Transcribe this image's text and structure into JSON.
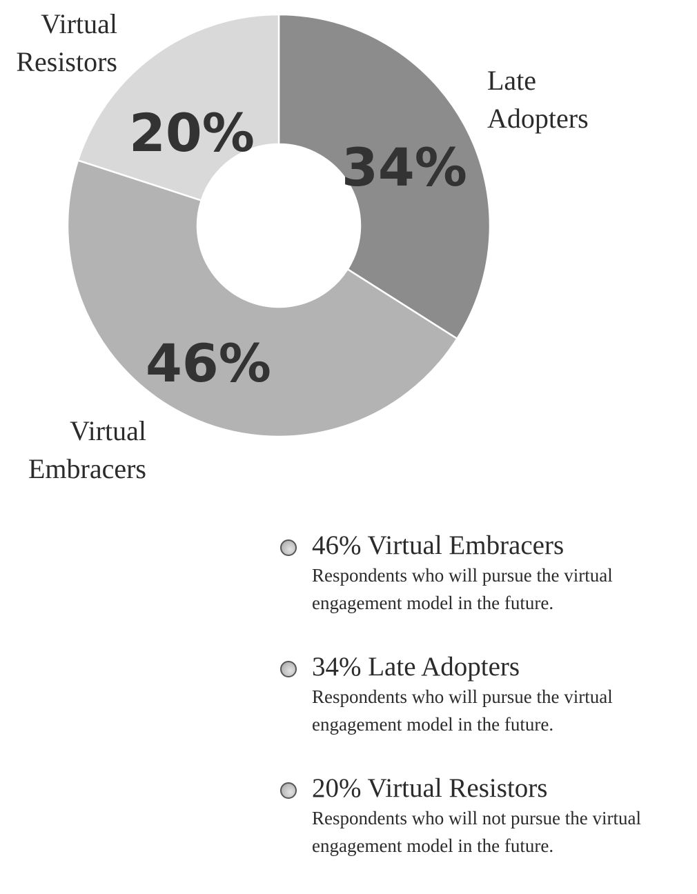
{
  "chart_data": {
    "type": "pie",
    "donut": true,
    "slices": [
      {
        "name": "Late Adopters",
        "label_line1": "Late",
        "label_line2": "Adopters",
        "value": 34,
        "value_label": "34%",
        "color": "#8c8c8c"
      },
      {
        "name": "Virtual Embracers",
        "label_line1": "Virtual",
        "label_line2": "Embracers",
        "value": 46,
        "value_label": "46%",
        "color": "#b3b3b3"
      },
      {
        "name": "Virtual Resistors",
        "label_line1": "Virtual",
        "label_line2": "Resistors",
        "value": 20,
        "value_label": "20%",
        "color": "#d9d9d9"
      }
    ]
  },
  "legend": {
    "items": [
      {
        "title": "46% Virtual Embracers",
        "description": "Respondents who will pursue the virtual engagement model in the future."
      },
      {
        "title": "34% Late Adopters",
        "description": "Respondents who will pursue the virtual engagement model in the future."
      },
      {
        "title": "20% Virtual Resistors",
        "description": "Respondents who will not pursue the virtual engagement model in the future."
      }
    ]
  }
}
